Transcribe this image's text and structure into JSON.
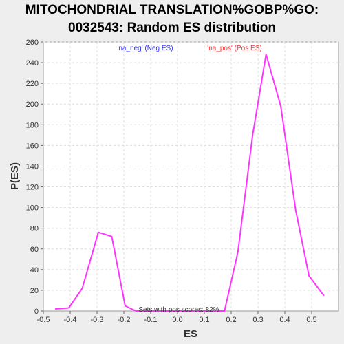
{
  "chart_data": {
    "type": "line",
    "title_line1": "MITOCHONDRIAL TRANSLATION%GOBP%GO:",
    "title_line2": "0032543: Random ES distribution",
    "xlabel": "ES",
    "ylabel": "P(ES)",
    "xlim": [
      -0.5,
      0.6
    ],
    "ylim": [
      0,
      260
    ],
    "xticks": [
      "-0.5",
      "-0.4",
      "-0.3",
      "-0.2",
      "-0.1",
      "0.0",
      "0.1",
      "0.2",
      "0.3",
      "0.4",
      "0.5"
    ],
    "xtick_values": [
      -0.5,
      -0.4,
      -0.3,
      -0.2,
      -0.1,
      0.0,
      0.1,
      0.2,
      0.3,
      0.4,
      0.5
    ],
    "yticks": [
      "0",
      "20",
      "40",
      "60",
      "80",
      "100",
      "120",
      "140",
      "160",
      "180",
      "200",
      "220",
      "240",
      "260"
    ],
    "ytick_values": [
      0,
      20,
      40,
      60,
      80,
      100,
      120,
      140,
      160,
      180,
      200,
      220,
      240,
      260
    ],
    "grid": true,
    "legend": [
      {
        "label": "'na_neg' (Neg ES)",
        "color": "#3333ff"
      },
      {
        "label": "'na_pos' (Pos ES)",
        "color": "#ff3333"
      }
    ],
    "annotation": "Sets with pos scores: 82%",
    "series": [
      {
        "color": "#ff33ff",
        "x": [
          -0.455,
          -0.405,
          -0.355,
          -0.295,
          -0.245,
          -0.195,
          -0.155,
          -0.105,
          -0.055,
          0.0,
          0.08,
          0.125,
          0.175,
          0.225,
          0.28,
          0.33,
          0.385,
          0.44,
          0.49,
          0.545
        ],
        "y": [
          2,
          3,
          22,
          76,
          72,
          5,
          0,
          0,
          0,
          0,
          0,
          0,
          0,
          57,
          170,
          248,
          198,
          98,
          34,
          15
        ]
      }
    ]
  }
}
